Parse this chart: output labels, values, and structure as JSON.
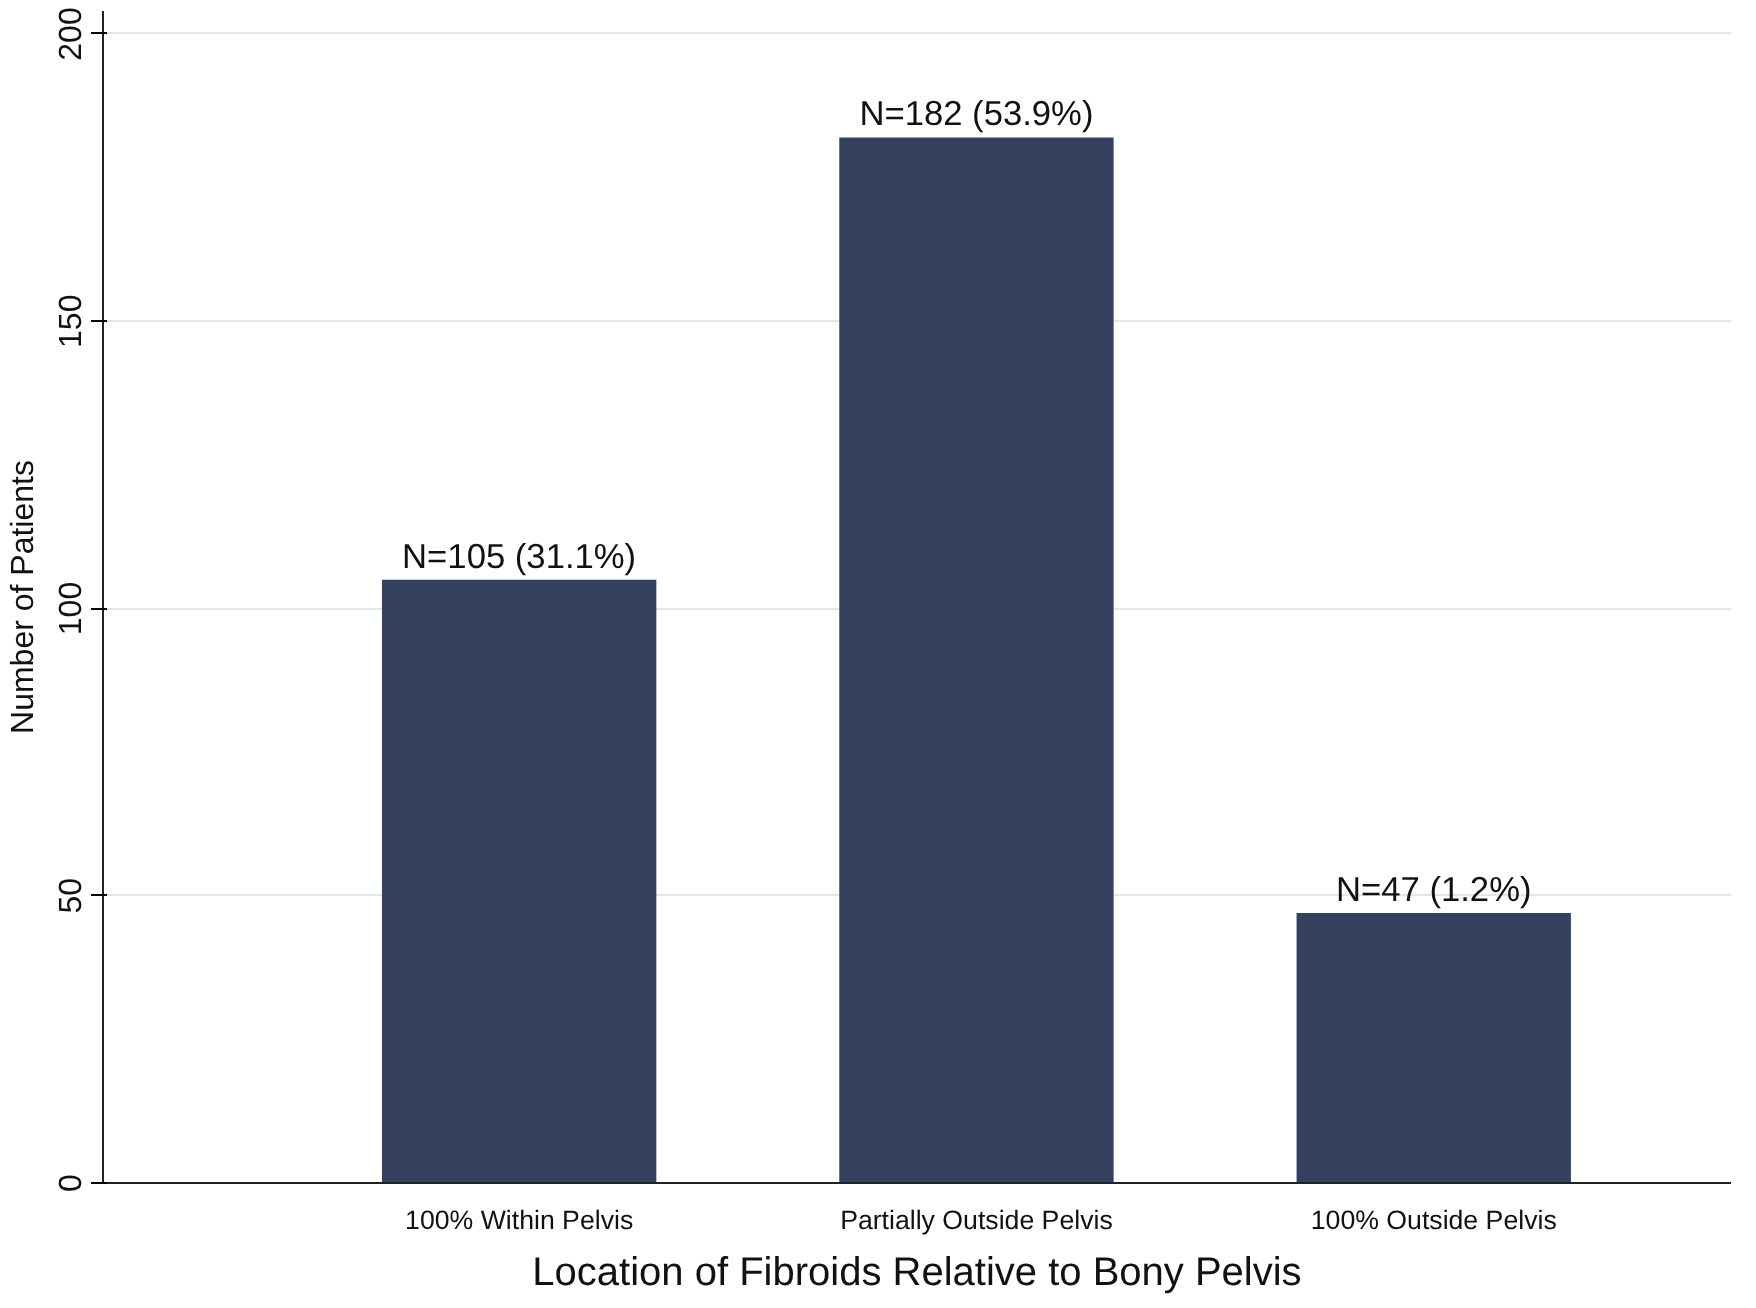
{
  "chart_data": {
    "type": "bar",
    "xlabel": "Location of Fibroids Relative to Bony Pelvis",
    "ylabel": "Number of Patients",
    "categories": [
      "100% Within Pelvis",
      "Partially Outside Pelvis",
      "100% Outside Pelvis"
    ],
    "values": [
      105,
      182,
      47
    ],
    "color": "#344260",
    "value_labels": [
      "N=105 (31.1%)",
      "N=182 (53.9%)",
      "N=47 (1.2%)"
    ],
    "ylim": [
      0,
      204
    ],
    "yticks": [
      0,
      50,
      100,
      150,
      200
    ],
    "grid": "y"
  }
}
